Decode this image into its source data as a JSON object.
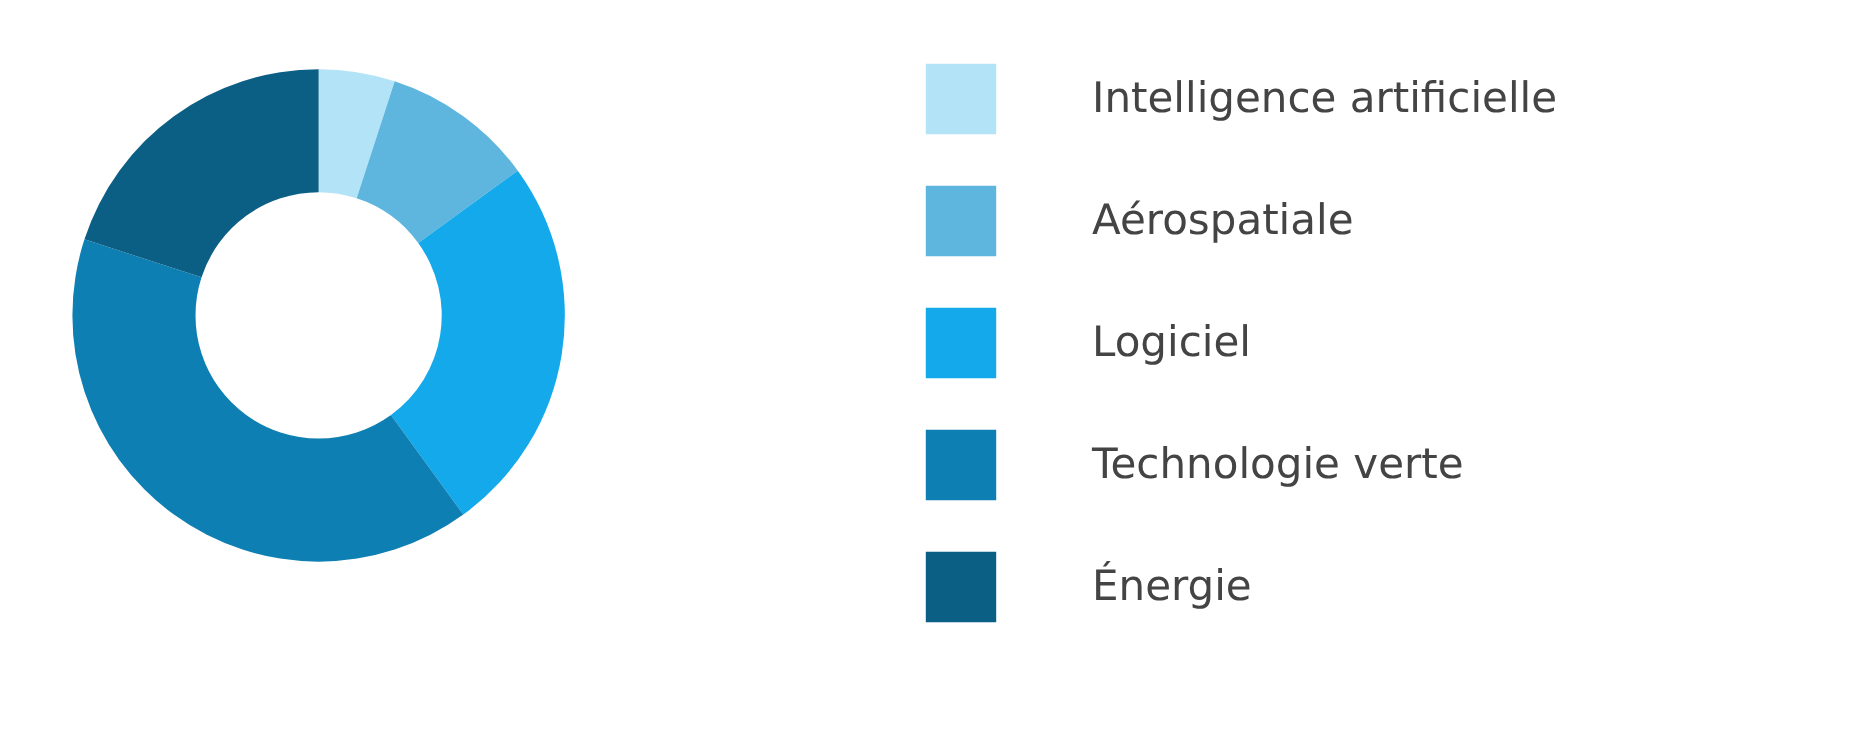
{
  "chart_data": {
    "type": "donut",
    "categories": [
      "Intelligence artificielle",
      "Aérospatiale",
      "Logiciel",
      "Technologie verte",
      "Énergie"
    ],
    "values": [
      5,
      10,
      25,
      40,
      20
    ],
    "colors": [
      "#b3e3f7",
      "#5eb6df",
      "#13a9eb",
      "#0e7fb3",
      "#0b5e84"
    ],
    "legend": "right"
  }
}
